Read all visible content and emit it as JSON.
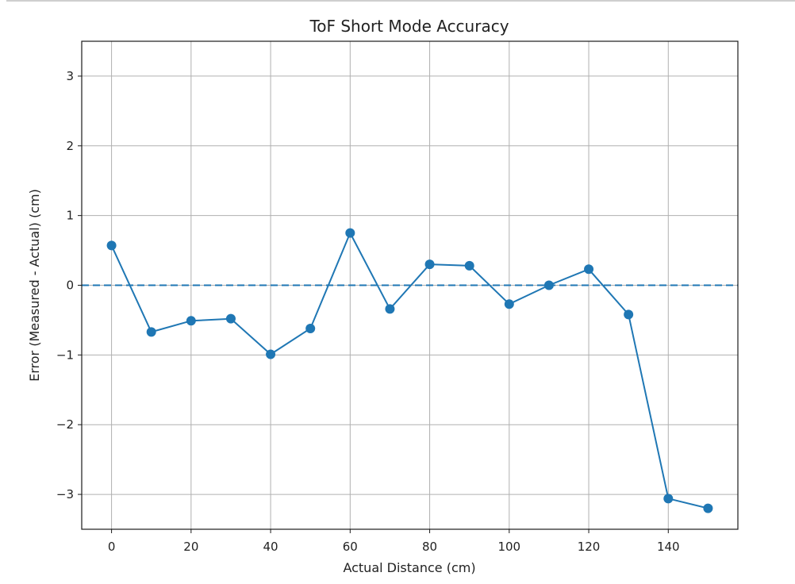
{
  "chart_data": {
    "type": "line",
    "title": "ToF Short Mode Accuracy",
    "xlabel": "Actual Distance (cm)",
    "ylabel": "Error (Measured - Actual) (cm)",
    "x": [
      0,
      10,
      20,
      30,
      40,
      50,
      60,
      70,
      80,
      90,
      100,
      110,
      120,
      130,
      140,
      150
    ],
    "series": [
      {
        "name": "Error",
        "color": "#1f77b4",
        "marker": "circle",
        "values": [
          0.57,
          -0.67,
          -0.51,
          -0.48,
          -0.99,
          -0.62,
          0.75,
          -0.34,
          0.3,
          0.28,
          -0.27,
          0.0,
          0.23,
          -0.42,
          -3.06,
          -3.2
        ]
      }
    ],
    "reference_line": {
      "y": 0,
      "style": "dashed",
      "color": "#1f77b4"
    },
    "xlim": [
      -7.5,
      157.5
    ],
    "ylim": [
      -3.5,
      3.5
    ],
    "xticks": [
      0,
      20,
      40,
      60,
      80,
      100,
      120,
      140
    ],
    "xtick_labels": [
      "0",
      "20",
      "40",
      "60",
      "80",
      "100",
      "120",
      "140"
    ],
    "yticks": [
      -3,
      -2,
      -1,
      0,
      1,
      2,
      3
    ],
    "ytick_labels": [
      "−3",
      "−2",
      "−1",
      "0",
      "1",
      "2",
      "3"
    ],
    "grid": true,
    "legend": null
  }
}
